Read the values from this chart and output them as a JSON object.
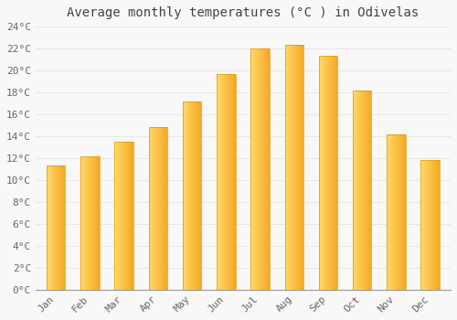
{
  "title": "Average monthly temperatures (°C ) in Odivelas",
  "months": [
    "Jan",
    "Feb",
    "Mar",
    "Apr",
    "May",
    "Jun",
    "Jul",
    "Aug",
    "Sep",
    "Oct",
    "Nov",
    "Dec"
  ],
  "values": [
    11.3,
    12.2,
    13.5,
    14.8,
    17.2,
    19.7,
    22.0,
    22.3,
    21.3,
    18.2,
    14.2,
    11.8
  ],
  "bar_color_left": "#FFD966",
  "bar_color_right": "#F5A623",
  "bar_color_edge": "#E09800",
  "background_color": "#F8F8F8",
  "grid_color": "#E0E0E0",
  "text_color": "#666666",
  "title_color": "#444444",
  "ylim": [
    0,
    24
  ],
  "yticks": [
    0,
    2,
    4,
    6,
    8,
    10,
    12,
    14,
    16,
    18,
    20,
    22,
    24
  ],
  "title_fontsize": 10,
  "tick_fontsize": 8,
  "bar_width": 0.55
}
